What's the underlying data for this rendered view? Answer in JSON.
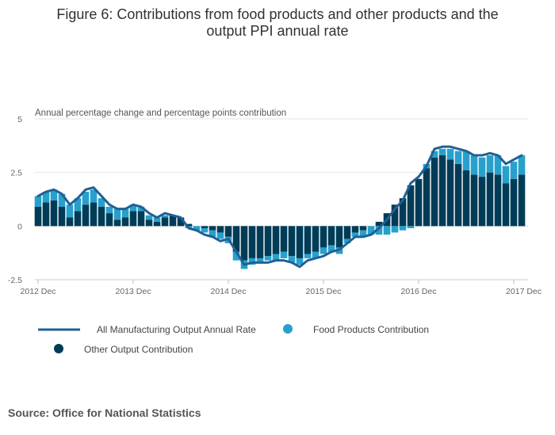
{
  "chart_data": {
    "type": "bar",
    "title": "Figure 6: Contributions from food products and other products and the output PPI annual rate",
    "title_lines": [
      "Figure 6: Contributions from food products and other products and the",
      "output PPI annual rate"
    ],
    "ylabel": "Annual percentage change and percentage points contribution",
    "ylim": [
      -2.5,
      5
    ],
    "yticks": [
      "-2.5",
      "0",
      "2.5",
      "5"
    ],
    "ytick_values": [
      -2.5,
      0,
      2.5,
      5
    ],
    "grid": true,
    "stacked": true,
    "legend_position": "bottom",
    "x_tick_labels": [
      "2012 Dec",
      "2013 Dec",
      "2014 Dec",
      "2015 Dec",
      "2016 Dec",
      "2017 Dec"
    ],
    "x_tick_index": [
      0,
      12,
      24,
      36,
      48,
      60
    ],
    "series": [
      {
        "name": "Other Output Contribution",
        "type": "bar",
        "color": "#003c57",
        "values": [
          0.9,
          1.1,
          1.2,
          0.9,
          0.4,
          0.7,
          1.0,
          1.1,
          0.9,
          0.6,
          0.3,
          0.4,
          0.7,
          0.7,
          0.3,
          0.2,
          0.4,
          0.5,
          0.4,
          0.1,
          0.0,
          -0.1,
          -0.2,
          -0.3,
          -0.5,
          -1.2,
          -1.6,
          -1.5,
          -1.5,
          -1.4,
          -1.3,
          -1.2,
          -1.4,
          -1.5,
          -1.3,
          -1.2,
          -1.0,
          -0.9,
          -1.0,
          -0.6,
          -0.3,
          -0.2,
          0.0,
          0.2,
          0.6,
          1.0,
          1.3,
          1.9,
          2.2,
          2.7,
          3.2,
          3.3,
          3.1,
          2.9,
          2.6,
          2.4,
          2.3,
          2.5,
          2.4,
          2.0,
          2.2,
          2.4
        ]
      },
      {
        "name": "Food Products Contribution",
        "type": "bar",
        "color": "#27a0cc",
        "values": [
          0.5,
          0.5,
          0.5,
          0.6,
          0.6,
          0.6,
          0.6,
          0.6,
          0.4,
          0.3,
          0.5,
          0.4,
          0.3,
          0.2,
          0.2,
          0.2,
          0.1,
          0.0,
          0.0,
          -0.1,
          -0.2,
          -0.2,
          -0.3,
          -0.3,
          -0.3,
          -0.4,
          -0.4,
          -0.3,
          -0.2,
          -0.2,
          -0.3,
          -0.3,
          -0.3,
          -0.3,
          -0.2,
          -0.3,
          -0.3,
          -0.3,
          -0.3,
          -0.2,
          -0.2,
          -0.3,
          -0.4,
          -0.4,
          -0.4,
          -0.3,
          -0.2,
          -0.1,
          0.0,
          0.2,
          0.3,
          0.3,
          0.5,
          0.6,
          0.9,
          0.9,
          0.9,
          0.8,
          0.9,
          0.8,
          0.8,
          0.9
        ]
      },
      {
        "name": "All Manufacturing Output Annual Rate",
        "type": "line",
        "color": "#206095",
        "values": [
          1.4,
          1.6,
          1.7,
          1.5,
          1.0,
          1.3,
          1.7,
          1.8,
          1.4,
          1.0,
          0.8,
          0.8,
          1.0,
          0.9,
          0.6,
          0.4,
          0.6,
          0.5,
          0.4,
          -0.1,
          -0.2,
          -0.4,
          -0.5,
          -0.7,
          -0.6,
          -1.2,
          -1.8,
          -1.7,
          -1.7,
          -1.7,
          -1.6,
          -1.6,
          -1.7,
          -1.9,
          -1.6,
          -1.5,
          -1.4,
          -1.2,
          -1.1,
          -0.8,
          -0.5,
          -0.5,
          -0.4,
          -0.1,
          0.3,
          0.8,
          1.2,
          2.0,
          2.3,
          2.8,
          3.6,
          3.7,
          3.7,
          3.6,
          3.5,
          3.3,
          3.3,
          3.4,
          3.3,
          2.9,
          3.1,
          3.3
        ]
      }
    ]
  },
  "legend": [
    {
      "label": "All Manufacturing Output Annual Rate",
      "symbol": "line",
      "color": "#206095"
    },
    {
      "label": "Food Products Contribution",
      "symbol": "circle",
      "color": "#27a0cc"
    },
    {
      "label": "Other Output Contribution",
      "symbol": "circle",
      "color": "#003c57"
    }
  ],
  "source": "Source: Office for National Statistics"
}
